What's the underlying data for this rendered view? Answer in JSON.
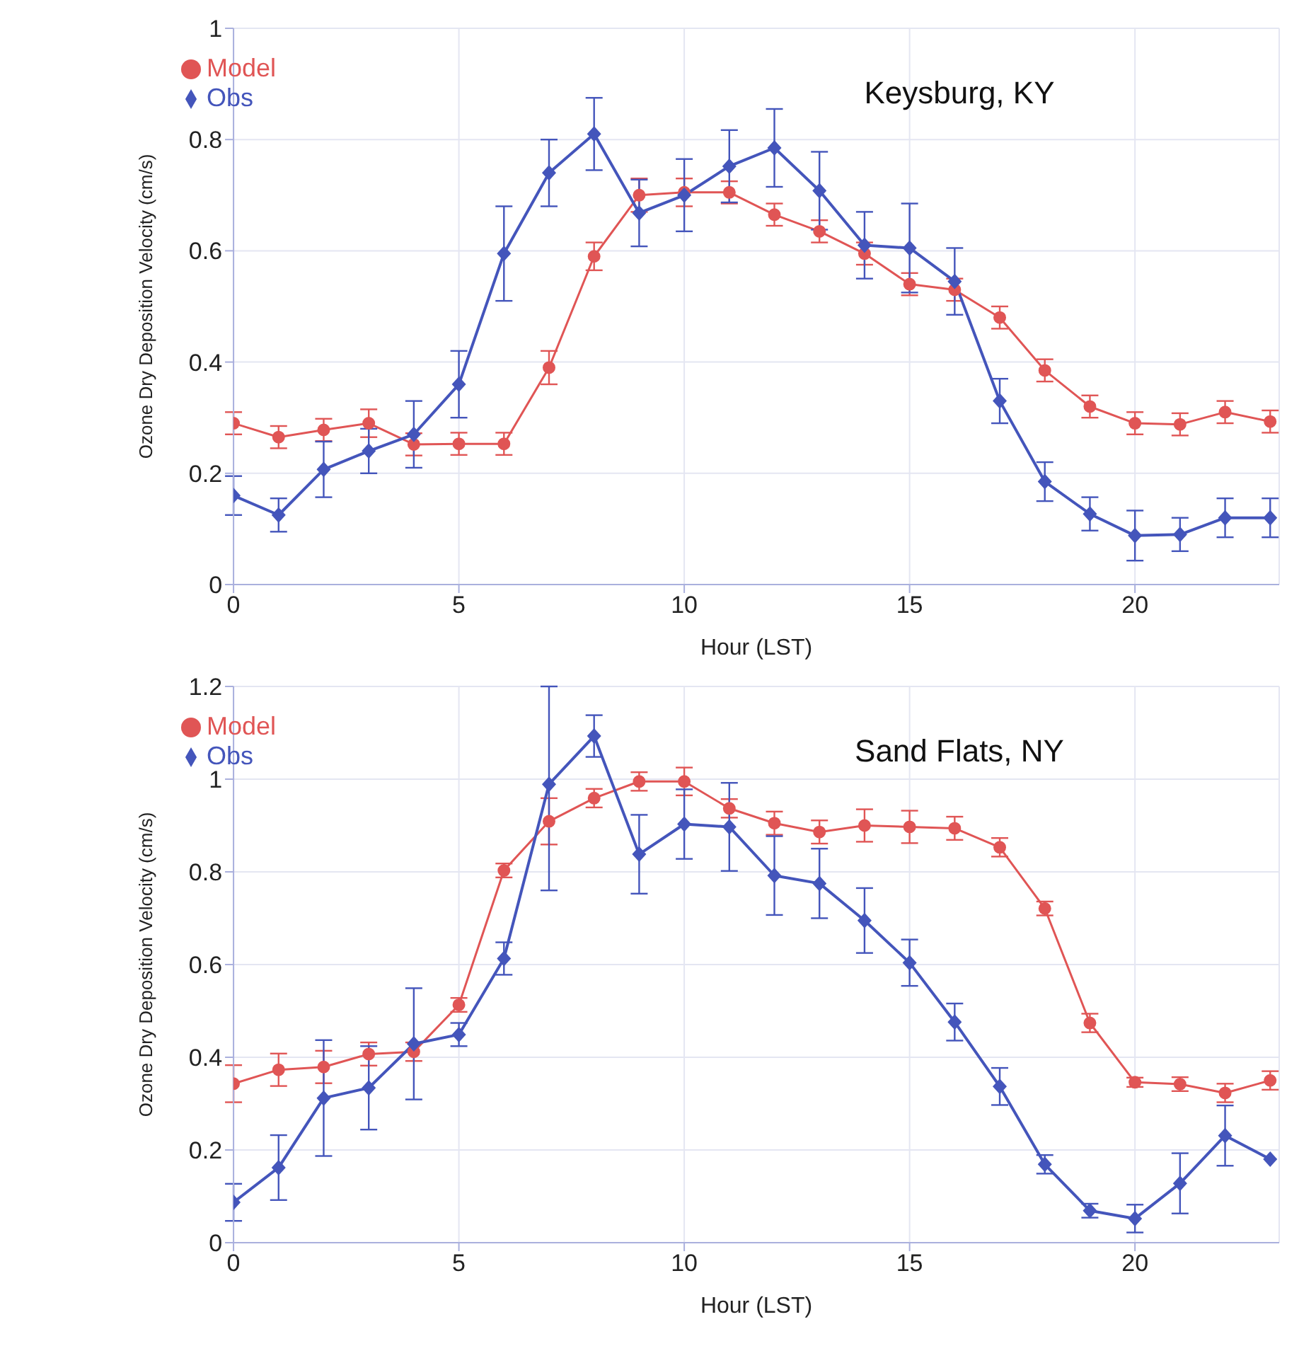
{
  "chart_data": [
    {
      "type": "line",
      "title": "Keysburg, KY",
      "xlabel": "Hour (LST)",
      "ylabel": "Ozone Dry Deposition Velocity (cm/s)",
      "x": [
        0,
        1,
        2,
        3,
        4,
        5,
        6,
        7,
        8,
        9,
        10,
        11,
        12,
        13,
        14,
        15,
        16,
        17,
        18,
        19,
        20,
        21,
        22,
        23
      ],
      "xlim": [
        0,
        23.2
      ],
      "xticks": [
        0,
        5,
        10,
        15,
        20
      ],
      "ylim": [
        0,
        1
      ],
      "yticks": [
        0,
        0.2,
        0.4,
        0.6,
        0.8,
        1
      ],
      "grid": true,
      "legend": "top left",
      "line_style": "solid",
      "series": [
        {
          "name": "Model",
          "color": "#e05555",
          "marker": "circle",
          "values": [
            0.29,
            0.265,
            0.278,
            0.29,
            0.252,
            0.253,
            0.253,
            0.39,
            0.59,
            0.7,
            0.705,
            0.705,
            0.665,
            0.635,
            0.595,
            0.54,
            0.53,
            0.48,
            0.385,
            0.32,
            0.29,
            0.288,
            0.31,
            0.293
          ],
          "errors": [
            0.02,
            0.02,
            0.02,
            0.025,
            0.02,
            0.02,
            0.02,
            0.03,
            0.025,
            0.03,
            0.025,
            0.02,
            0.02,
            0.02,
            0.02,
            0.02,
            0.02,
            0.02,
            0.02,
            0.02,
            0.02,
            0.02,
            0.02,
            0.02
          ]
        },
        {
          "name": "Obs",
          "color": "#4455bb",
          "marker": "diamond",
          "values": [
            0.16,
            0.125,
            0.207,
            0.24,
            0.27,
            0.36,
            0.595,
            0.74,
            0.81,
            0.668,
            0.7,
            0.752,
            0.785,
            0.708,
            0.61,
            0.605,
            0.545,
            0.33,
            0.185,
            0.127,
            0.088,
            0.09,
            0.12,
            0.12
          ],
          "errors": [
            0.035,
            0.03,
            0.05,
            0.04,
            0.06,
            0.06,
            0.085,
            0.06,
            0.065,
            0.06,
            0.065,
            0.065,
            0.07,
            0.07,
            0.06,
            0.08,
            0.06,
            0.04,
            0.035,
            0.03,
            0.045,
            0.03,
            0.035,
            0.035
          ]
        }
      ]
    },
    {
      "type": "line",
      "title": "Sand Flats, NY",
      "xlabel": "Hour (LST)",
      "ylabel": "Ozone Dry Deposition Velocity (cm/s)",
      "x": [
        0,
        1,
        2,
        3,
        4,
        5,
        6,
        7,
        8,
        9,
        10,
        11,
        12,
        13,
        14,
        15,
        16,
        17,
        18,
        19,
        20,
        21,
        22,
        23
      ],
      "xlim": [
        0,
        23.2
      ],
      "xticks": [
        0,
        5,
        10,
        15,
        20
      ],
      "ylim": [
        0,
        1.2
      ],
      "yticks": [
        0,
        0.2,
        0.4,
        0.6,
        0.8,
        1,
        1.2
      ],
      "grid": true,
      "legend": "top left",
      "line_style": "solid",
      "series": [
        {
          "name": "Model",
          "color": "#e05555",
          "marker": "circle",
          "values": [
            0.343,
            0.373,
            0.379,
            0.407,
            0.412,
            0.513,
            0.803,
            0.909,
            0.959,
            0.995,
            0.995,
            0.937,
            0.905,
            0.886,
            0.9,
            0.897,
            0.894,
            0.853,
            0.721,
            0.474,
            0.346,
            0.342,
            0.323,
            0.35
          ],
          "errors": [
            0.04,
            0.035,
            0.035,
            0.025,
            0.02,
            0.015,
            0.015,
            0.05,
            0.02,
            0.02,
            0.03,
            0.02,
            0.025,
            0.025,
            0.035,
            0.035,
            0.025,
            0.02,
            0.015,
            0.02,
            0.01,
            0.015,
            0.02,
            0.02
          ]
        },
        {
          "name": "Obs",
          "color": "#4455bb",
          "marker": "diamond",
          "values": [
            0.087,
            0.162,
            0.312,
            0.334,
            0.429,
            0.449,
            0.613,
            0.989,
            1.093,
            0.838,
            0.903,
            0.897,
            0.792,
            0.775,
            0.695,
            0.604,
            0.476,
            0.337,
            0.169,
            0.069,
            0.052,
            0.128,
            0.231,
            0.18
          ],
          "errors": [
            0.04,
            0.07,
            0.125,
            0.09,
            0.12,
            0.025,
            0.035,
            [
              0.76,
              1.2
            ],
            0.045,
            0.085,
            0.075,
            0.095,
            0.085,
            0.075,
            0.07,
            0.05,
            0.04,
            0.04,
            0.02,
            0.015,
            0.03,
            0.065,
            0.065,
            null
          ]
        }
      ]
    }
  ]
}
